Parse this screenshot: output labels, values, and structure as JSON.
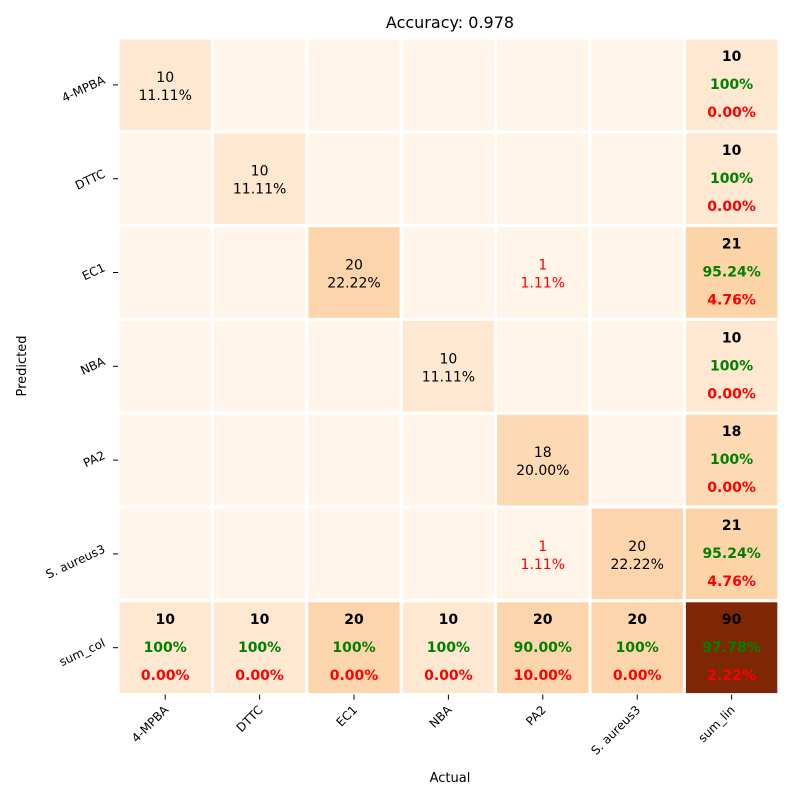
{
  "chart_data": {
    "type": "heatmap",
    "title": "Accuracy: 0.978",
    "xlabel": "Actual",
    "ylabel": "Predicted",
    "x_categories": [
      "4-MPBA",
      "DTTC",
      "EC1",
      "NBA",
      "PA2",
      "S. aureus3",
      "sum_lin"
    ],
    "y_categories": [
      "4-MPBA",
      "DTTC",
      "EC1",
      "NBA",
      "PA2",
      "S. aureus3",
      "sum_col"
    ],
    "matrix": [
      [
        10,
        0,
        0,
        0,
        0,
        0
      ],
      [
        0,
        10,
        0,
        0,
        0,
        0
      ],
      [
        0,
        0,
        20,
        0,
        1,
        0
      ],
      [
        0,
        0,
        0,
        10,
        0,
        0
      ],
      [
        0,
        0,
        0,
        0,
        18,
        0
      ],
      [
        0,
        0,
        0,
        0,
        1,
        20
      ]
    ],
    "cell_percents": [
      [
        "11.11%",
        "",
        "",
        "",
        "",
        ""
      ],
      [
        "",
        "11.11%",
        "",
        "",
        "",
        ""
      ],
      [
        "",
        "",
        "22.22%",
        "",
        "1.11%",
        ""
      ],
      [
        "",
        "",
        "",
        "11.11%",
        "",
        ""
      ],
      [
        "",
        "",
        "",
        "",
        "20.00%",
        ""
      ],
      [
        "",
        "",
        "",
        "",
        "1.11%",
        "22.22%"
      ]
    ],
    "row_summary": [
      {
        "total": "10",
        "correct": "100%",
        "error": "0.00%"
      },
      {
        "total": "10",
        "correct": "100%",
        "error": "0.00%"
      },
      {
        "total": "21",
        "correct": "95.24%",
        "error": "4.76%"
      },
      {
        "total": "10",
        "correct": "100%",
        "error": "0.00%"
      },
      {
        "total": "18",
        "correct": "100%",
        "error": "0.00%"
      },
      {
        "total": "21",
        "correct": "95.24%",
        "error": "4.76%"
      }
    ],
    "col_summary": [
      {
        "total": "10",
        "correct": "100%",
        "error": "0.00%"
      },
      {
        "total": "10",
        "correct": "100%",
        "error": "0.00%"
      },
      {
        "total": "20",
        "correct": "100%",
        "error": "0.00%"
      },
      {
        "total": "10",
        "correct": "100%",
        "error": "0.00%"
      },
      {
        "total": "20",
        "correct": "90.00%",
        "error": "10.00%"
      },
      {
        "total": "20",
        "correct": "100%",
        "error": "0.00%"
      }
    ],
    "grand_total": {
      "total": "90",
      "correct": "97.78%",
      "error": "2.22%"
    },
    "colormap": "Oranges",
    "colors": {
      "correct": "#008000",
      "error": "#ff0000",
      "text": "#000000",
      "grid": "#ffffff"
    }
  }
}
